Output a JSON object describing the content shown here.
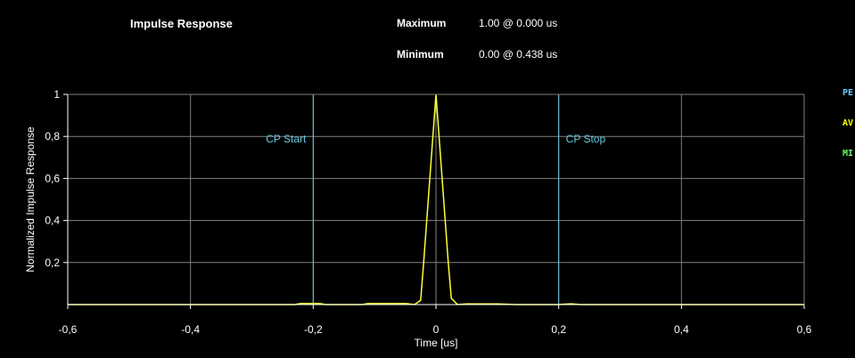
{
  "header": {
    "title": "Impulse Response",
    "maximum_label": "Maximum",
    "maximum_value": "1.00 @ 0.000 us",
    "minimum_label": "Minimum",
    "minimum_value": "0.00 @ 0.438 us"
  },
  "legend": {
    "items": [
      {
        "text": "PE",
        "color": "#66ccff"
      },
      {
        "text": "AV",
        "color": "#ffff00"
      },
      {
        "text": "MI",
        "color": "#66ff66"
      }
    ]
  },
  "colors": {
    "background": "#000000",
    "frame": "#ffffff",
    "grid": "#808080",
    "trace": "#ffff33",
    "marker": "#66c8e0",
    "text": "#ffffff"
  },
  "chart_data": {
    "type": "line",
    "title": "Impulse Response",
    "xlabel": "Time [us]",
    "ylabel": "Normalized Impulse Response",
    "xlim": [
      -0.6,
      0.6
    ],
    "ylim": [
      0,
      1
    ],
    "x_ticks": [
      -0.6,
      -0.4,
      -0.2,
      0,
      0.2,
      0.4,
      0.6
    ],
    "x_tick_labels": [
      "-0,6",
      "-0,4",
      "-0,2",
      "0",
      "0,2",
      "0,4",
      "0,6"
    ],
    "y_ticks": [
      0.2,
      0.4,
      0.6,
      0.8,
      1
    ],
    "y_tick_labels": [
      "0,2",
      "0,4",
      "0,6",
      "0,8",
      "1"
    ],
    "grid": true,
    "markers": [
      {
        "label": "CP Start",
        "x": -0.2
      },
      {
        "label": "CP Stop",
        "x": 0.2
      }
    ],
    "series": [
      {
        "color": "#ffff33",
        "points": [
          [
            -0.6,
            0.0
          ],
          [
            -0.23,
            0.0
          ],
          [
            -0.22,
            0.005
          ],
          [
            -0.19,
            0.005
          ],
          [
            -0.18,
            0.0
          ],
          [
            -0.12,
            0.0
          ],
          [
            -0.11,
            0.005
          ],
          [
            -0.05,
            0.005
          ],
          [
            -0.035,
            0.0
          ],
          [
            -0.025,
            0.02
          ],
          [
            -0.02,
            0.2
          ],
          [
            -0.01,
            0.6
          ],
          [
            0.0,
            1.0
          ],
          [
            0.01,
            0.6
          ],
          [
            0.02,
            0.2
          ],
          [
            0.025,
            0.03
          ],
          [
            0.035,
            0.0
          ],
          [
            0.05,
            0.003
          ],
          [
            0.1,
            0.003
          ],
          [
            0.13,
            0.0
          ],
          [
            0.2,
            0.0
          ],
          [
            0.22,
            0.004
          ],
          [
            0.235,
            0.0
          ],
          [
            0.6,
            0.0
          ]
        ]
      }
    ]
  }
}
